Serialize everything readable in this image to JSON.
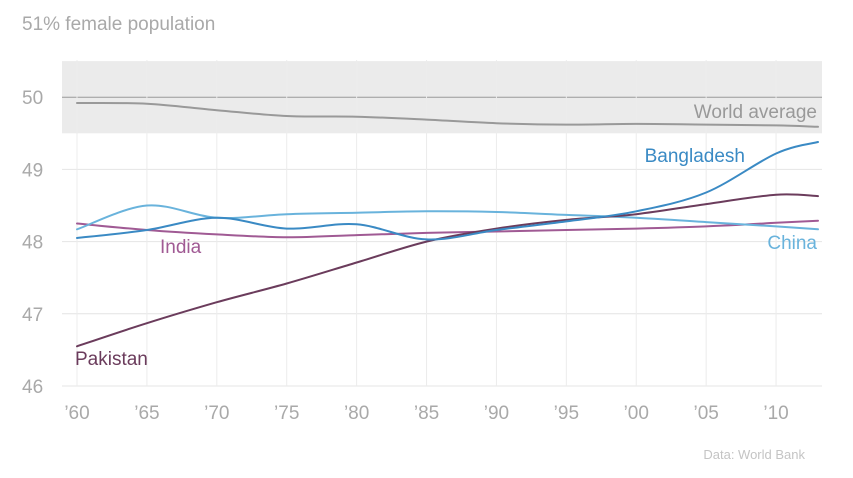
{
  "chart_data": {
    "type": "line",
    "title": "51% female population",
    "source": "Data: World Bank",
    "xlim": [
      1960,
      2013
    ],
    "ylim": [
      46,
      51
    ],
    "x_ticks": [
      {
        "value": 1960,
        "label": "’60"
      },
      {
        "value": 1965,
        "label": "’65"
      },
      {
        "value": 1970,
        "label": "’70"
      },
      {
        "value": 1975,
        "label": "’75"
      },
      {
        "value": 1980,
        "label": "’80"
      },
      {
        "value": 1985,
        "label": "’85"
      },
      {
        "value": 1990,
        "label": "’90"
      },
      {
        "value": 1995,
        "label": "’95"
      },
      {
        "value": 2000,
        "label": "’00"
      },
      {
        "value": 2005,
        "label": "’05"
      },
      {
        "value": 2010,
        "label": "’10"
      }
    ],
    "y_ticks": [
      46,
      47,
      48,
      49,
      50
    ],
    "reference_band": [
      49.5,
      50.5
    ],
    "reference_line": 50,
    "x": [
      1960,
      1965,
      1970,
      1975,
      1980,
      1985,
      1990,
      1995,
      2000,
      2005,
      2010,
      2013
    ],
    "series": [
      {
        "name": "World average",
        "color": "#999999",
        "values": [
          49.92,
          49.91,
          49.82,
          49.74,
          49.73,
          49.69,
          49.64,
          49.62,
          49.63,
          49.62,
          49.61,
          49.59
        ]
      },
      {
        "name": "Bangladesh",
        "color": "#3a8ac4",
        "values": [
          48.05,
          48.16,
          48.33,
          48.18,
          48.24,
          48.03,
          48.16,
          48.28,
          48.42,
          48.68,
          49.22,
          49.38
        ]
      },
      {
        "name": "China",
        "color": "#69b3dc",
        "values": [
          48.17,
          48.5,
          48.33,
          48.38,
          48.4,
          48.42,
          48.41,
          48.37,
          48.33,
          48.27,
          48.21,
          48.17
        ]
      },
      {
        "name": "India",
        "color": "#a05a94",
        "values": [
          48.25,
          48.16,
          48.1,
          48.06,
          48.09,
          48.12,
          48.14,
          48.16,
          48.18,
          48.21,
          48.26,
          48.29
        ]
      },
      {
        "name": "Pakistan",
        "color": "#6b3c5c",
        "values": [
          46.55,
          46.87,
          47.16,
          47.42,
          47.71,
          48.0,
          48.18,
          48.3,
          48.38,
          48.52,
          48.65,
          48.63
        ]
      }
    ]
  }
}
